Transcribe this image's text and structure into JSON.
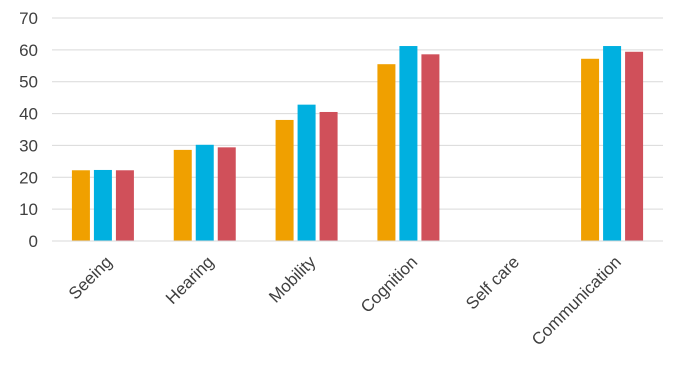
{
  "chart_data": {
    "type": "bar",
    "title": "",
    "xlabel": "",
    "ylabel": "",
    "categories": [
      "Seeing",
      "Hearing",
      "Mobility",
      "Cognition",
      "Self care",
      "Communication"
    ],
    "series": [
      {
        "color": "#f0a000",
        "values": [
          22.2,
          28.6,
          38.0,
          55.5,
          null,
          57.2
        ]
      },
      {
        "color": "#00b0e0",
        "values": [
          22.3,
          30.2,
          42.8,
          61.2,
          null,
          61.2
        ]
      },
      {
        "color": "#d0505a",
        "values": [
          22.2,
          29.4,
          40.5,
          58.6,
          null,
          59.4
        ]
      }
    ],
    "ylim": [
      0,
      70
    ],
    "yticks": [
      "0",
      "10",
      "20",
      "30",
      "40",
      "50",
      "60",
      "70"
    ],
    "grid": true,
    "legend": "none"
  }
}
